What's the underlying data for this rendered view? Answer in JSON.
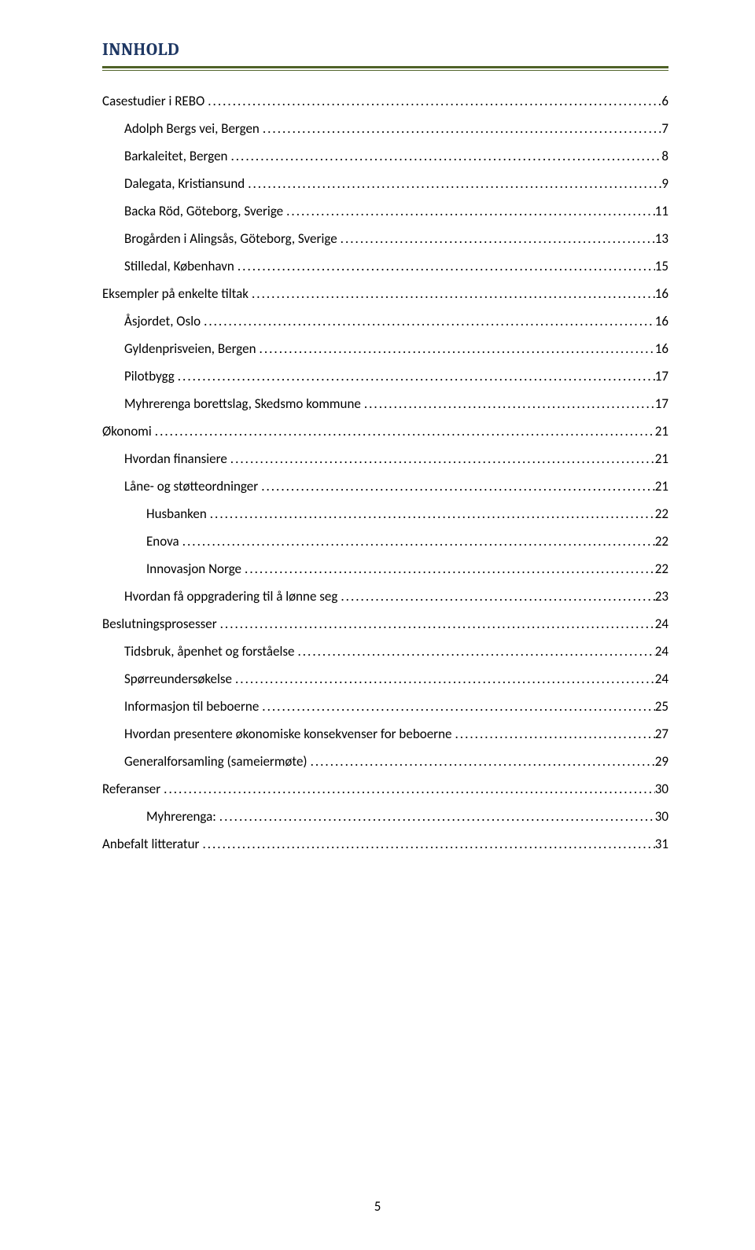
{
  "heading": "INNHOLD",
  "colors": {
    "heading": "#1f3864",
    "rule": "#4f6228",
    "text": "#000000",
    "background": "#ffffff"
  },
  "typography": {
    "heading_font": "Cambria",
    "body_font": "Calibri",
    "heading_size_pt": 16,
    "body_size_pt": 12
  },
  "page_number": "5",
  "toc": [
    {
      "level": 0,
      "label": "Casestudier i REBO",
      "page": "6"
    },
    {
      "level": 1,
      "label": "Adolph Bergs vei, Bergen",
      "page": "7"
    },
    {
      "level": 1,
      "label": "Barkaleitet, Bergen",
      "page": "8"
    },
    {
      "level": 1,
      "label": "Dalegata, Kristiansund",
      "page": "9"
    },
    {
      "level": 1,
      "label": "Backa Röd, Göteborg, Sverige",
      "page": "11"
    },
    {
      "level": 1,
      "label": "Brogården i Alingsås, Göteborg, Sverige",
      "page": "13"
    },
    {
      "level": 1,
      "label": "Stilledal, København",
      "page": "15"
    },
    {
      "level": 0,
      "label": "Eksempler på enkelte tiltak",
      "page": "16"
    },
    {
      "level": 1,
      "label": "Åsjordet, Oslo",
      "page": "16"
    },
    {
      "level": 1,
      "label": "Gyldenprisveien, Bergen",
      "page": "16"
    },
    {
      "level": 1,
      "label": "Pilotbygg",
      "page": "17"
    },
    {
      "level": 1,
      "label": "Myhrerenga borettslag, Skedsmo kommune",
      "page": "17"
    },
    {
      "level": 0,
      "label": "Økonomi",
      "page": "21"
    },
    {
      "level": 1,
      "label": "Hvordan finansiere",
      "page": "21"
    },
    {
      "level": 1,
      "label": "Låne- og støtteordninger",
      "page": "21"
    },
    {
      "level": 2,
      "label": "Husbanken",
      "page": "22"
    },
    {
      "level": 2,
      "label": "Enova",
      "page": "22"
    },
    {
      "level": 2,
      "label": "Innovasjon Norge",
      "page": "22"
    },
    {
      "level": 1,
      "label": "Hvordan få oppgradering til å lønne seg",
      "page": "23"
    },
    {
      "level": 0,
      "label": "Beslutningsprosesser",
      "page": "24"
    },
    {
      "level": 1,
      "label": "Tidsbruk, åpenhet og forståelse",
      "page": "24"
    },
    {
      "level": 1,
      "label": "Spørreundersøkelse",
      "page": "24"
    },
    {
      "level": 1,
      "label": "Informasjon til beboerne",
      "page": "25"
    },
    {
      "level": 1,
      "label": "Hvordan presentere økonomiske konsekvenser for beboerne",
      "page": "27"
    },
    {
      "level": 1,
      "label": "Generalforsamling (sameiermøte)",
      "page": "29"
    },
    {
      "level": 0,
      "label": "Referanser",
      "page": "30"
    },
    {
      "level": 2,
      "label": "Myhrerenga:",
      "page": "30"
    },
    {
      "level": 0,
      "label": "Anbefalt litteratur",
      "page": "31"
    }
  ]
}
